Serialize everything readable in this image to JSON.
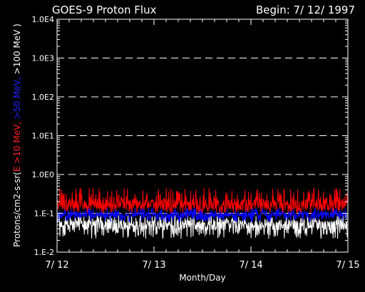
{
  "header": {
    "title": "GOES-9 Proton Flux",
    "begin": "Begin: 7/ 12/ 1997"
  },
  "chart_data": {
    "type": "line",
    "xlabel": "Month/Day",
    "ylabel": {
      "prefix": "Protons/cm2-s-sr(",
      "parts": [
        {
          "text": "E >10 MeV, ",
          "color": "#ff2020"
        },
        {
          "text": ">50 MeV, ",
          "color": "#2020ff"
        },
        {
          "text": ">100 MeV )",
          "color": "#ffffff"
        }
      ]
    },
    "y_scale": "log",
    "ylim": [
      0.01,
      10000
    ],
    "xlim": [
      12,
      15
    ],
    "x_ticks": [
      {
        "value": 12,
        "label": "7/ 12"
      },
      {
        "value": 13,
        "label": "7/ 13"
      },
      {
        "value": 14,
        "label": "7/ 14"
      },
      {
        "value": 15,
        "label": "7/ 15"
      }
    ],
    "y_ticks": [
      {
        "value": 0.01,
        "label": "1.E-2"
      },
      {
        "value": 0.1,
        "label": "1.E-1"
      },
      {
        "value": 1,
        "label": "1.0E0"
      },
      {
        "value": 10,
        "label": "1.0E1"
      },
      {
        "value": 100,
        "label": "1.0E2"
      },
      {
        "value": 1000,
        "label": "1.0E3"
      },
      {
        "value": 10000,
        "label": "1.0E4"
      }
    ],
    "grid_lines": [
      0.1,
      1,
      10,
      100,
      1000
    ],
    "series": [
      {
        "color": "#ffffff",
        "level": 0.05,
        "min": 0.022,
        "max": 0.09
      },
      {
        "color": "#0000ff",
        "level": 0.09,
        "min": 0.06,
        "max": 0.14
      },
      {
        "color": "#ff0000",
        "level": 0.17,
        "min": 0.1,
        "max": 0.45
      }
    ]
  }
}
